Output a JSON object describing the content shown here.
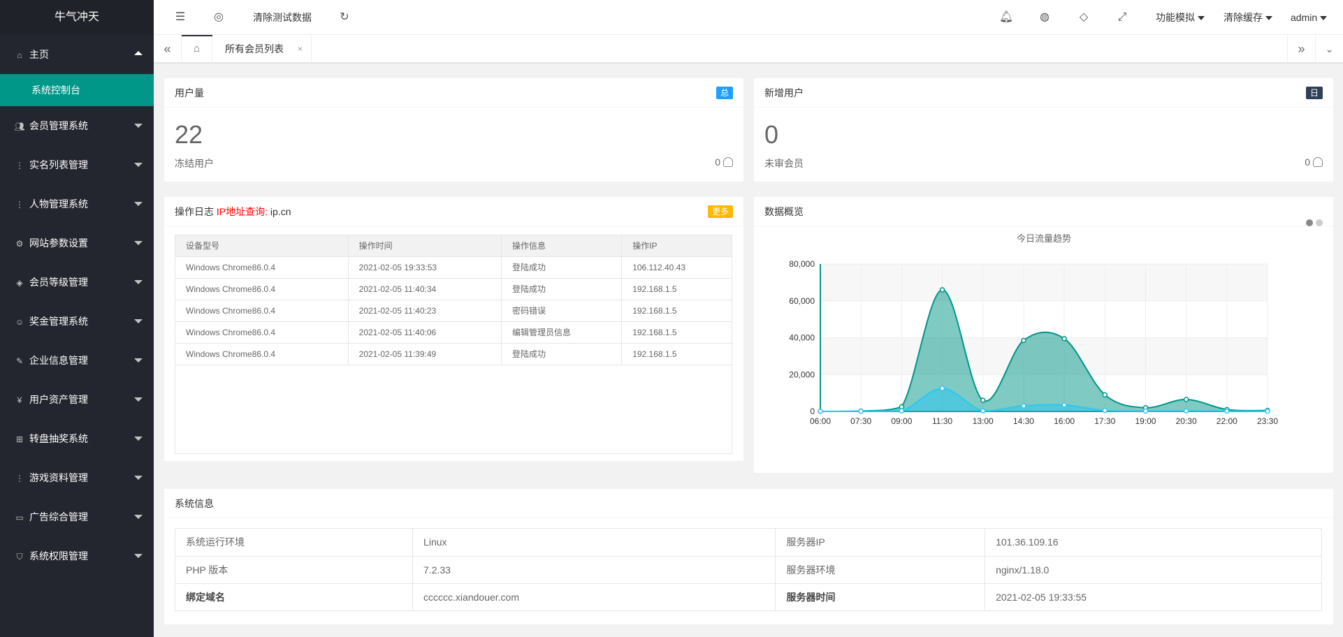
{
  "sidebar": {
    "logo": "牛气冲天",
    "home": "主页",
    "sub_active": "系统控制台",
    "items": [
      {
        "label": "会员管理系统",
        "icon": "users-icon"
      },
      {
        "label": "实名列表管理",
        "icon": "more-icon"
      },
      {
        "label": "人物管理系统",
        "icon": "more-icon"
      },
      {
        "label": "网站参数设置",
        "icon": "gear-icon"
      },
      {
        "label": "会员等级管理",
        "icon": "diamond-icon"
      },
      {
        "label": "奖金管理系统",
        "icon": "smile-icon"
      },
      {
        "label": "企业信息管理",
        "icon": "edit-icon"
      },
      {
        "label": "用户资产管理",
        "icon": "rmb-icon"
      },
      {
        "label": "转盘抽奖系统",
        "icon": "apps-icon"
      },
      {
        "label": "游戏资料管理",
        "icon": "more-icon"
      },
      {
        "label": "广告综合管理",
        "icon": "screen-icon"
      },
      {
        "label": "系统权限管理",
        "icon": "shield-icon"
      }
    ]
  },
  "header": {
    "clear_test": "清除测试数据",
    "func_sim": "功能模拟",
    "clear_cache": "清除缓存",
    "user": "admin"
  },
  "tabs": {
    "active_label": "所有会员列表",
    "close": "×"
  },
  "user_card": {
    "title": "用户量",
    "badge": "总",
    "badge_color": "#1E9FFF",
    "value": "22",
    "sub_label": "冻结用户",
    "sub_value": "0"
  },
  "new_card": {
    "title": "新增用户",
    "badge": "日",
    "badge_color": "#2F4056",
    "value": "0",
    "sub_label": "未审会员",
    "sub_value": "0"
  },
  "log": {
    "title": "操作日志",
    "ip_query": "IP地址查询:",
    "ip_site": "ip.cn",
    "more": "更多",
    "more_color": "#FFB800",
    "headers": [
      "设备型号",
      "操作时间",
      "操作信息",
      "操作IP"
    ],
    "rows": [
      [
        "Windows Chrome86.0.4",
        "2021-02-05 19:33:53",
        "登陆成功",
        "106.112.40.43"
      ],
      [
        "Windows Chrome86.0.4",
        "2021-02-05 11:40:34",
        "登陆成功",
        "192.168.1.5"
      ],
      [
        "Windows Chrome86.0.4",
        "2021-02-05 11:40:23",
        "密码错误",
        "192.168.1.5"
      ],
      [
        "Windows Chrome86.0.4",
        "2021-02-05 11:40:06",
        "编辑管理员信息",
        "192.168.1.5"
      ],
      [
        "Windows Chrome86.0.4",
        "2021-02-05 11:39:49",
        "登陆成功",
        "192.168.1.5"
      ]
    ]
  },
  "overview": {
    "title": "数据概览"
  },
  "chart_data": {
    "type": "area",
    "title": "今日流量趋势",
    "x": [
      "06:00",
      "07:30",
      "09:00",
      "11:30",
      "13:00",
      "14:30",
      "16:00",
      "17:30",
      "19:00",
      "20:30",
      "22:00",
      "23:30"
    ],
    "ylim": [
      0,
      80000
    ],
    "yticks": [
      0,
      20000,
      40000,
      60000,
      80000
    ],
    "ytick_labels": [
      "0",
      "20,000",
      "40,000",
      "60,000",
      "80,000"
    ],
    "grid": true,
    "series": [
      {
        "values": [
          0,
          200,
          2500,
          66000,
          6000,
          38500,
          39500,
          9000,
          2000,
          6500,
          1000,
          500
        ],
        "color": "#009688"
      },
      {
        "values": [
          0,
          100,
          300,
          12500,
          300,
          3000,
          3500,
          500,
          200,
          300,
          200,
          100
        ],
        "color": "#2ec7f0"
      }
    ]
  },
  "sysinfo": {
    "title": "系统信息",
    "rows": [
      [
        "系统运行环境",
        "Linux",
        "服务器IP",
        "101.36.109.16"
      ],
      [
        "PHP 版本",
        "7.2.33",
        "服务器环境",
        "nginx/1.18.0"
      ],
      [
        "绑定域名",
        "cccccc.xiandouer.com",
        "服务器时间",
        "2021-02-05 19:33:55"
      ]
    ]
  }
}
